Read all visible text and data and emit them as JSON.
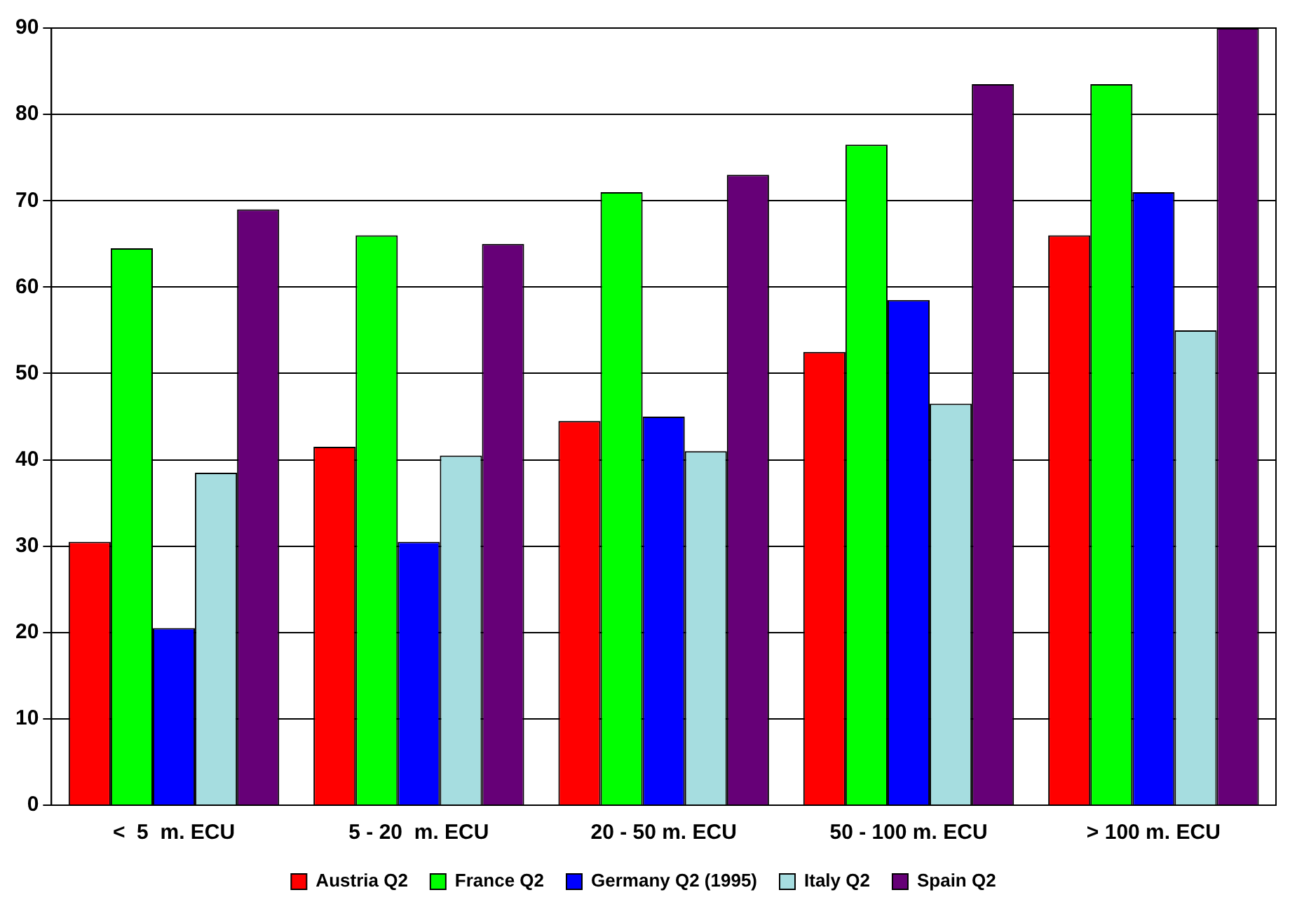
{
  "chart_data": {
    "type": "bar",
    "categories": [
      "<  5  m. ECU",
      "5 - 20  m. ECU",
      "20 - 50 m. ECU",
      "50 - 100 m. ECU",
      "> 100 m. ECU"
    ],
    "series": [
      {
        "name": "Austria Q2",
        "color": "#ff0000",
        "values": [
          30.5,
          41.5,
          44.5,
          52.5,
          66
        ]
      },
      {
        "name": "France Q2",
        "color": "#00ff00",
        "values": [
          64.5,
          66,
          71,
          76.5,
          83.5
        ]
      },
      {
        "name": "Germany Q2 (1995)",
        "color": "#0000ff",
        "values": [
          20.5,
          30.5,
          45,
          58.5,
          71
        ]
      },
      {
        "name": "Italy Q2",
        "color": "#a6dde0",
        "values": [
          38.5,
          40.5,
          41,
          46.5,
          55
        ]
      },
      {
        "name": "Spain Q2",
        "color": "#660077",
        "values": [
          69,
          65,
          73,
          83.5,
          90
        ]
      }
    ],
    "ylim": [
      0,
      90
    ],
    "yticks": [
      0,
      10,
      20,
      30,
      40,
      50,
      60,
      70,
      80,
      90
    ],
    "grid": "y",
    "legend": "bottom"
  }
}
